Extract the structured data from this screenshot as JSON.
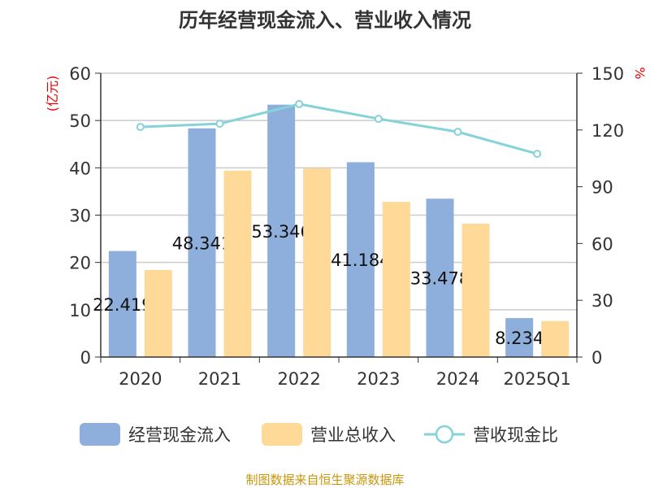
{
  "chart_data": {
    "type": "bar",
    "title": "历年经营现金流入、营业收入情况",
    "categories": [
      "2020",
      "2021",
      "2022",
      "2023",
      "2024",
      "2025Q1"
    ],
    "series": [
      {
        "name": "经营现金流入",
        "type": "bar",
        "axis": "left",
        "color": "#8eaedb",
        "values": [
          22.419,
          48.341,
          53.346,
          41.184,
          33.478,
          8.234
        ],
        "labels": [
          "22.419",
          "48.341",
          "53.346",
          "41.184",
          "33.478",
          "8.234"
        ]
      },
      {
        "name": "营业总收入",
        "type": "bar",
        "axis": "left",
        "color": "#fed998",
        "values": [
          18.4,
          39.4,
          39.9,
          32.8,
          28.2,
          7.6
        ]
      },
      {
        "name": "营收现金比",
        "type": "line",
        "axis": "right",
        "color": "#85d3d8",
        "values": [
          121.6,
          123.3,
          133.7,
          125.9,
          119.0,
          107.4
        ]
      }
    ],
    "ylabel_left": "(亿元)",
    "ylabel_right": "%",
    "ylim_left": [
      0,
      60
    ],
    "ylim_right": [
      0,
      150
    ],
    "yticks_left": [
      "0",
      "10",
      "20",
      "30",
      "40",
      "50",
      "60"
    ],
    "yticks_right": [
      "0",
      "30",
      "60",
      "90",
      "120",
      "150"
    ],
    "grid": true,
    "legend_position": "bottom"
  },
  "source": "制图数据来自恒生聚源数据库"
}
